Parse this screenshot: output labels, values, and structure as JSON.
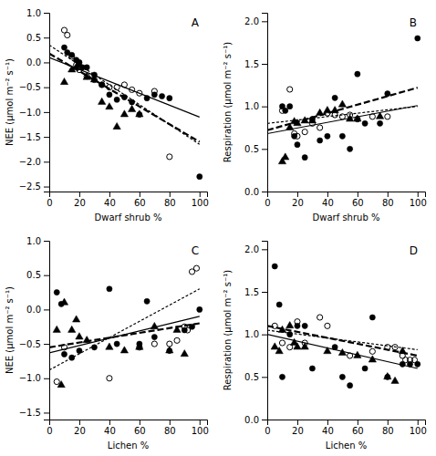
{
  "chart_data": [
    {
      "type": "scatter",
      "title": "A",
      "xlabel": "Dwarf shrub %",
      "ylabel": "NEE (μmol m⁻² s⁻¹)",
      "xlim": [
        0,
        105
      ],
      "ylim": [
        -2.6,
        1.0
      ],
      "xticks": [
        0,
        20,
        40,
        60,
        80,
        100
      ],
      "yticks": [
        {
          "value": -2.5,
          "label": "−2.5"
        },
        {
          "value": -2.0,
          "label": "−2.0"
        },
        {
          "value": -1.5,
          "label": "−1.5"
        },
        {
          "value": -1.0,
          "label": "−1.0"
        },
        {
          "value": -0.5,
          "label": "−0.5"
        },
        {
          "value": 0.0,
          "label": "0.0"
        },
        0.5,
        {
          "value": 1.0,
          "label": "1.0"
        }
      ],
      "grid": false,
      "series": [
        {
          "type": "scatter",
          "marker": "circle",
          "color": "black",
          "x": [
            10,
            12,
            15,
            18,
            20,
            22,
            25,
            30,
            35,
            40,
            45,
            50,
            55,
            60,
            65,
            70,
            75,
            80,
            100
          ],
          "values": [
            0.3,
            0.2,
            0.15,
            0.05,
            0.0,
            -0.1,
            -0.1,
            -0.25,
            -0.45,
            -0.65,
            -0.75,
            -0.7,
            -0.8,
            -1.05,
            -0.72,
            -0.65,
            -0.68,
            -0.72,
            -2.3
          ]
        },
        {
          "type": "scatter",
          "marker": "circle-open",
          "color": "black",
          "x": [
            10,
            12,
            15,
            18,
            20,
            25,
            30,
            35,
            40,
            45,
            50,
            55,
            60,
            70,
            80
          ],
          "values": [
            0.65,
            0.55,
            0.12,
            -0.05,
            -0.15,
            -0.28,
            -0.35,
            -0.45,
            -0.5,
            -0.5,
            -0.45,
            -0.55,
            -0.62,
            -0.58,
            -1.9
          ]
        },
        {
          "type": "scatter",
          "marker": "triangle",
          "color": "black",
          "x": [
            10,
            15,
            18,
            20,
            25,
            30,
            35,
            40,
            45,
            50,
            55,
            60
          ],
          "values": [
            -0.4,
            -0.15,
            -0.1,
            -0.05,
            -0.3,
            -0.35,
            -0.8,
            -0.9,
            -1.3,
            -1.05,
            -0.95,
            -1.05
          ]
        },
        {
          "type": "line",
          "line_style": "dashed",
          "color": "black",
          "x": [
            0,
            100
          ],
          "values": [
            0.18,
            -1.6
          ]
        },
        {
          "type": "line",
          "line_style": "dotted",
          "color": "black",
          "x": [
            0,
            100
          ],
          "values": [
            0.35,
            -1.65
          ]
        },
        {
          "type": "line",
          "line_style": "solid",
          "color": "black",
          "x": [
            0,
            100
          ],
          "values": [
            0.1,
            -1.1
          ]
        }
      ]
    },
    {
      "type": "scatter",
      "title": "B",
      "xlabel": "Dwarf shrub %",
      "ylabel": "Respiration (μmol m⁻² s⁻¹)",
      "xlim": [
        0,
        105
      ],
      "ylim": [
        0,
        2.1
      ],
      "xticks": [
        0,
        20,
        40,
        60,
        80,
        100
      ],
      "yticks": [
        {
          "value": 0,
          "label": "0.0"
        },
        0.5,
        {
          "value": 1.0,
          "label": "1.0"
        },
        1.5,
        {
          "value": 2.0,
          "label": "2.0"
        }
      ],
      "grid": false,
      "series": [
        {
          "type": "scatter",
          "marker": "circle",
          "color": "black",
          "x": [
            10,
            12,
            15,
            18,
            20,
            25,
            30,
            35,
            40,
            45,
            50,
            55,
            60,
            65,
            75,
            80,
            100
          ],
          "values": [
            1.0,
            0.95,
            1.0,
            0.65,
            0.55,
            0.4,
            0.85,
            0.6,
            0.65,
            1.1,
            0.65,
            0.5,
            1.38,
            0.8,
            0.8,
            1.15,
            1.8
          ]
        },
        {
          "type": "scatter",
          "marker": "circle-open",
          "color": "black",
          "x": [
            10,
            15,
            18,
            20,
            25,
            30,
            35,
            40,
            45,
            50,
            55,
            60,
            70,
            80
          ],
          "values": [
            0.95,
            1.2,
            0.68,
            0.65,
            0.7,
            0.8,
            0.75,
            0.92,
            0.9,
            0.88,
            0.9,
            0.85,
            0.88,
            0.88
          ]
        },
        {
          "type": "scatter",
          "marker": "triangle",
          "color": "black",
          "x": [
            10,
            12,
            15,
            18,
            20,
            25,
            30,
            35,
            40,
            45,
            50,
            55,
            60,
            75
          ],
          "values": [
            0.35,
            0.4,
            0.75,
            0.82,
            0.8,
            0.83,
            0.83,
            0.92,
            0.95,
            0.95,
            1.02,
            0.85,
            0.85,
            0.88
          ]
        },
        {
          "type": "line",
          "line_style": "dashed",
          "color": "black",
          "x": [
            0,
            100
          ],
          "values": [
            0.72,
            1.22
          ]
        },
        {
          "type": "line",
          "line_style": "dotted",
          "color": "black",
          "x": [
            0,
            100
          ],
          "values": [
            0.8,
            1.0
          ]
        },
        {
          "type": "line",
          "line_style": "solid",
          "color": "black",
          "x": [
            0,
            100
          ],
          "values": [
            0.68,
            1.01
          ]
        }
      ]
    },
    {
      "type": "scatter",
      "title": "C",
      "xlabel": "Lichen %",
      "ylabel": "NEE (μmol m⁻² s⁻¹)",
      "xlim": [
        0,
        105
      ],
      "ylim": [
        -1.6,
        1.0
      ],
      "xticks": [
        0,
        20,
        40,
        60,
        80,
        100
      ],
      "yticks": [
        {
          "value": -1.5,
          "label": "−1.5"
        },
        {
          "value": -1.0,
          "label": "−1.0"
        },
        {
          "value": -0.5,
          "label": "−0.5"
        },
        {
          "value": 0.0,
          "label": "0.0"
        },
        0.5,
        {
          "value": 1.0,
          "label": "1.0"
        }
      ],
      "grid": false,
      "series": [
        {
          "type": "scatter",
          "marker": "circle",
          "color": "black",
          "x": [
            5,
            8,
            10,
            15,
            20,
            30,
            40,
            45,
            60,
            65,
            70,
            80,
            90,
            95,
            100
          ],
          "values": [
            0.25,
            0.08,
            -0.65,
            -0.7,
            -0.6,
            -0.55,
            0.3,
            -0.5,
            -0.5,
            0.12,
            -0.4,
            -0.6,
            -0.3,
            -0.25,
            0.0
          ]
        },
        {
          "type": "scatter",
          "marker": "circle-open",
          "color": "black",
          "x": [
            5,
            10,
            40,
            60,
            70,
            80,
            85,
            90,
            92,
            95,
            98
          ],
          "values": [
            -1.05,
            -0.55,
            -1.0,
            -0.55,
            -0.5,
            -0.5,
            -0.45,
            -0.25,
            -0.3,
            0.55,
            0.6
          ]
        },
        {
          "type": "scatter",
          "marker": "triangle",
          "color": "black",
          "x": [
            5,
            8,
            10,
            15,
            18,
            20,
            25,
            40,
            50,
            60,
            70,
            80,
            85,
            90
          ],
          "values": [
            -0.3,
            -1.1,
            0.1,
            -0.3,
            -0.15,
            -0.4,
            -0.45,
            -0.55,
            -0.6,
            -0.55,
            -0.25,
            -0.6,
            -0.3,
            -0.65
          ]
        },
        {
          "type": "line",
          "line_style": "dashed",
          "color": "black",
          "x": [
            0,
            100
          ],
          "values": [
            -0.55,
            -0.2
          ]
        },
        {
          "type": "line",
          "line_style": "dotted",
          "color": "black",
          "x": [
            0,
            100
          ],
          "values": [
            -0.88,
            0.3
          ]
        },
        {
          "type": "line",
          "line_style": "solid",
          "color": "black",
          "x": [
            0,
            100
          ],
          "values": [
            -0.63,
            -0.1
          ]
        }
      ]
    },
    {
      "type": "scatter",
      "title": "D",
      "xlabel": "Lichen %",
      "ylabel": "Respiration (μmol m⁻² s⁻¹)",
      "xlim": [
        0,
        105
      ],
      "ylim": [
        0,
        2.1
      ],
      "xticks": [
        0,
        20,
        40,
        60,
        80,
        100
      ],
      "yticks": [
        {
          "value": 0,
          "label": "0.0"
        },
        0.5,
        {
          "value": 1.0,
          "label": "1.0"
        },
        1.5,
        {
          "value": 2.0,
          "label": "2.0"
        }
      ],
      "grid": false,
      "series": [
        {
          "type": "scatter",
          "marker": "circle",
          "color": "black",
          "x": [
            5,
            8,
            10,
            15,
            20,
            25,
            30,
            45,
            50,
            55,
            65,
            70,
            80,
            90,
            95,
            100
          ],
          "values": [
            1.8,
            1.35,
            0.5,
            1.0,
            1.1,
            1.1,
            0.6,
            0.85,
            0.5,
            0.4,
            0.6,
            1.2,
            0.5,
            0.65,
            0.65,
            0.65
          ]
        },
        {
          "type": "scatter",
          "marker": "circle-open",
          "color": "black",
          "x": [
            5,
            10,
            15,
            20,
            25,
            35,
            40,
            55,
            70,
            80,
            85,
            90,
            92,
            95,
            98
          ],
          "values": [
            1.1,
            0.9,
            0.85,
            1.15,
            0.9,
            1.2,
            1.1,
            0.75,
            0.8,
            0.85,
            0.85,
            0.75,
            0.7,
            0.7,
            0.7
          ]
        },
        {
          "type": "scatter",
          "marker": "triangle",
          "color": "black",
          "x": [
            5,
            8,
            10,
            15,
            18,
            20,
            25,
            40,
            50,
            60,
            70,
            80,
            85,
            90
          ],
          "values": [
            0.85,
            0.8,
            1.05,
            1.1,
            0.9,
            0.85,
            0.85,
            0.8,
            0.78,
            0.75,
            0.7,
            0.5,
            0.45,
            0.8
          ]
        },
        {
          "type": "line",
          "line_style": "dashed",
          "color": "black",
          "x": [
            0,
            100
          ],
          "values": [
            1.1,
            0.75
          ]
        },
        {
          "type": "line",
          "line_style": "dotted",
          "color": "black",
          "x": [
            0,
            100
          ],
          "values": [
            1.05,
            0.82
          ]
        },
        {
          "type": "line",
          "line_style": "solid",
          "color": "black",
          "x": [
            0,
            100
          ],
          "values": [
            1.0,
            0.6
          ]
        }
      ]
    }
  ]
}
